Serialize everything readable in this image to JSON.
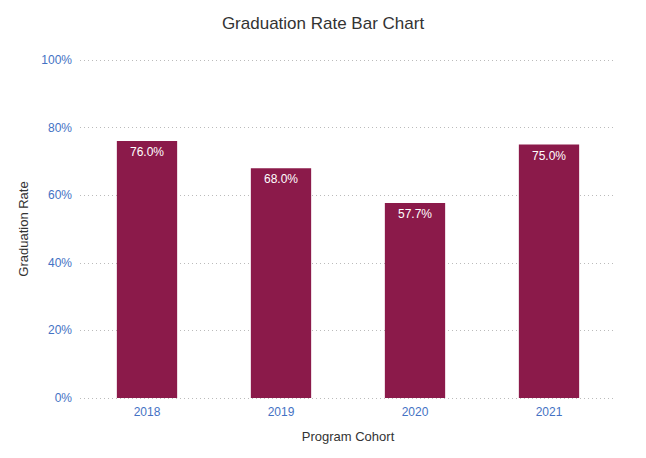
{
  "chart_data": {
    "type": "bar",
    "title": "Graduation Rate Bar Chart",
    "xlabel": "Program Cohort",
    "ylabel": "Graduation Rate",
    "categories": [
      "2018",
      "2019",
      "2020",
      "2021"
    ],
    "values": [
      76.0,
      68.0,
      57.7,
      75.0
    ],
    "value_labels": [
      "76.0%",
      "68.0%",
      "57.7%",
      "75.0%"
    ],
    "data_labels": true,
    "color": "#8B1A4A",
    "ylim": [
      0,
      100
    ],
    "yticks": [
      {
        "value": 0,
        "label": "0%"
      },
      {
        "value": 20,
        "label": "20%"
      },
      {
        "value": 40,
        "label": "40%"
      },
      {
        "value": 60,
        "label": "60%"
      },
      {
        "value": 80,
        "label": "80%"
      },
      {
        "value": 100,
        "label": "100%"
      }
    ],
    "grid": true
  }
}
